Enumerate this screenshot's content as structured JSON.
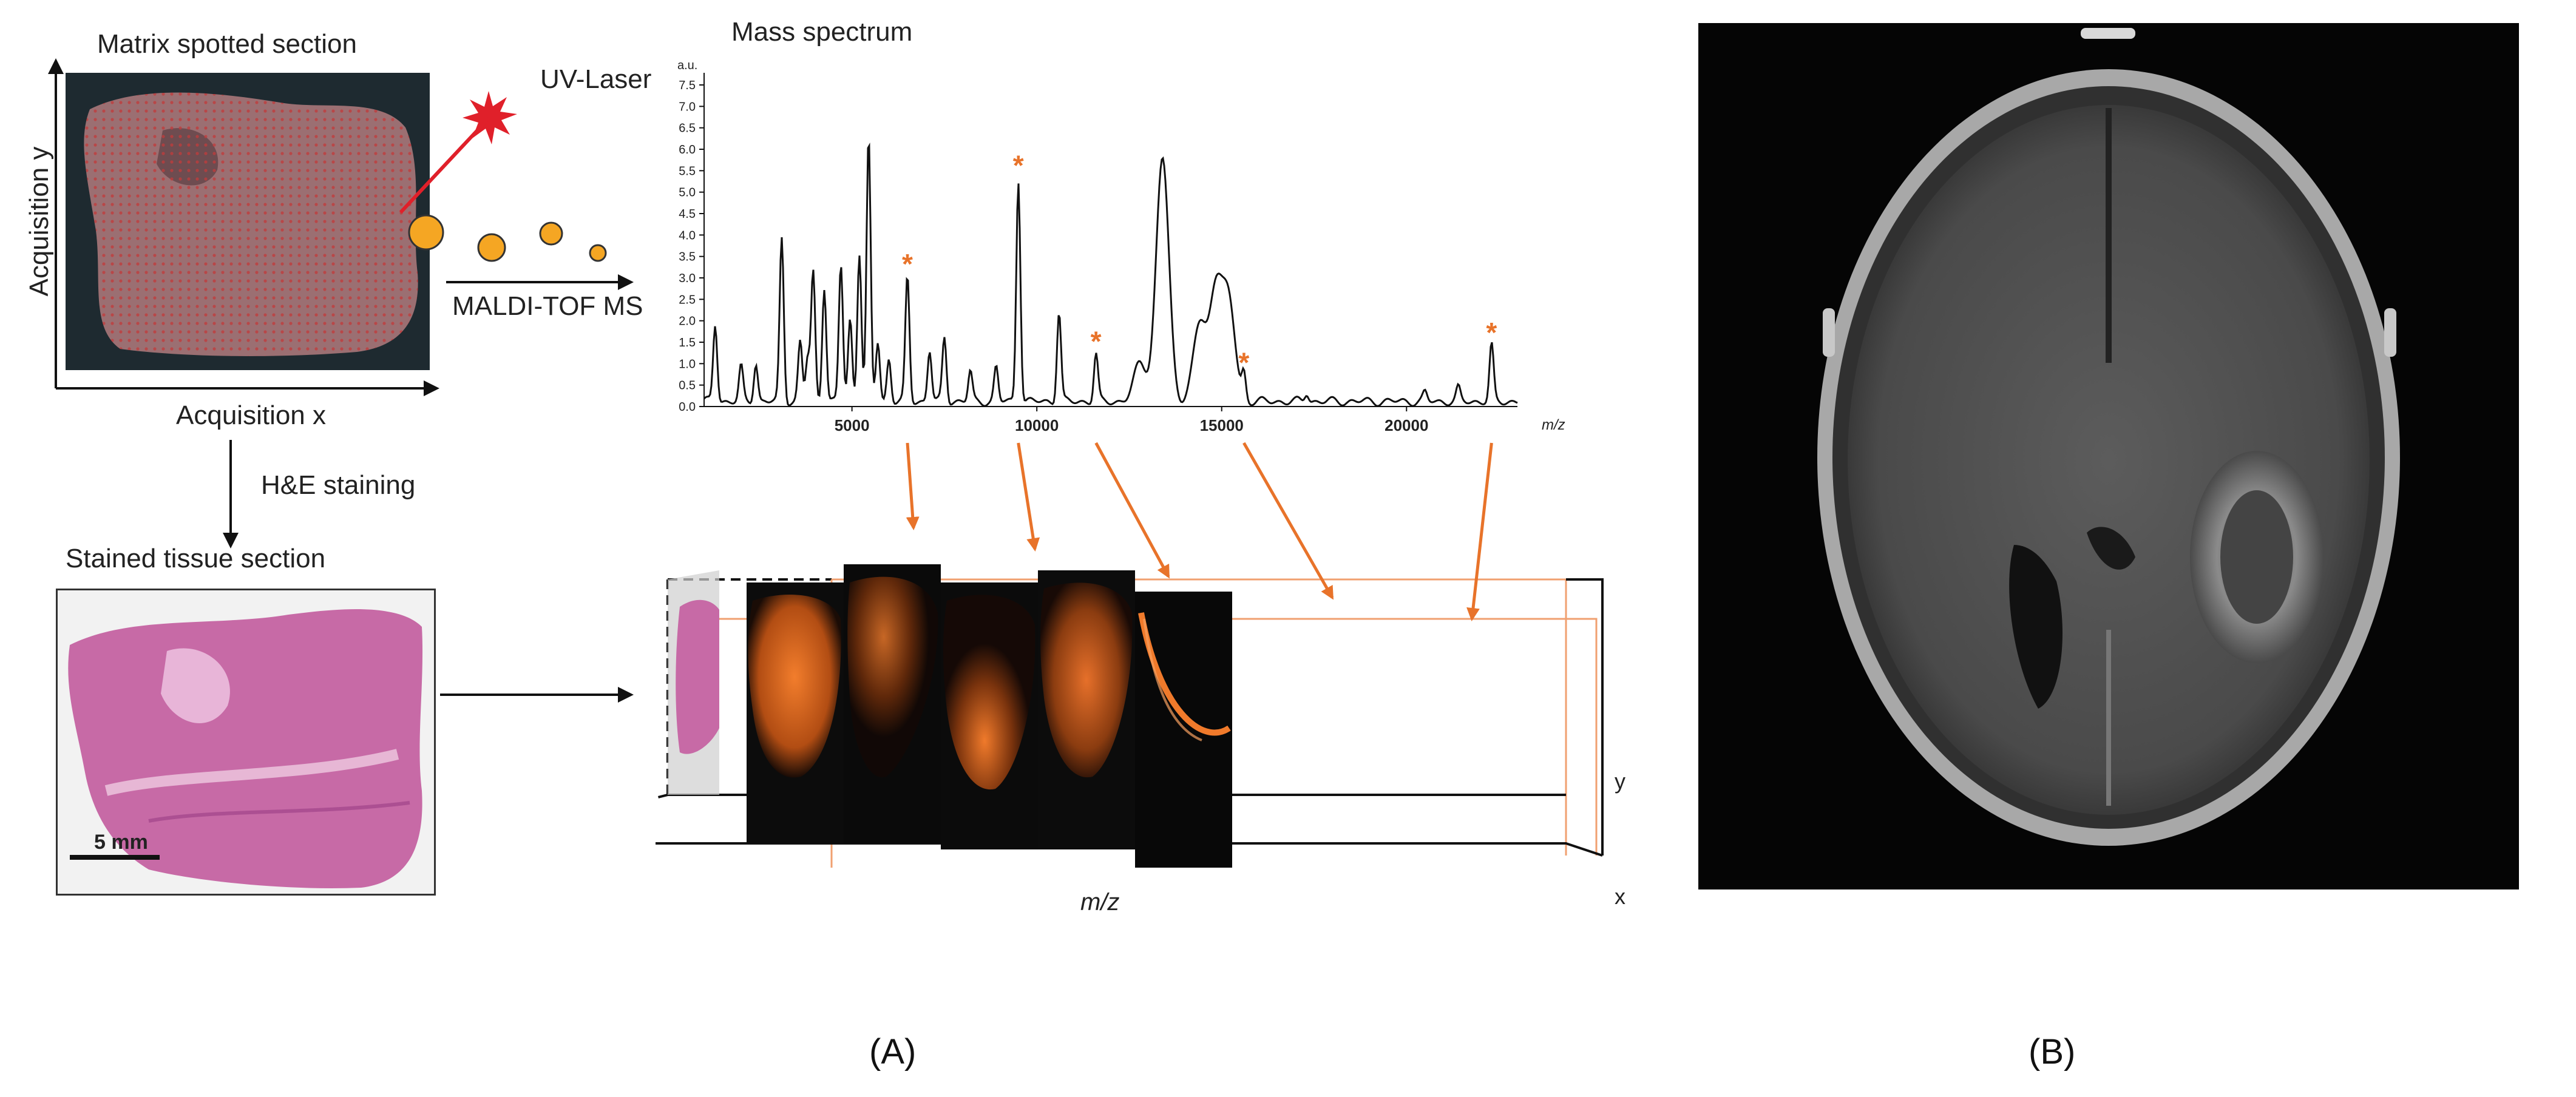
{
  "panel_a": {
    "label": "(A)",
    "matrix_title": "Matrix spotted section",
    "acq_y": "Acquisition y",
    "acq_x": "Acquisition x",
    "uv_laser": "UV-Laser",
    "maldi": "MALDI-TOF MS",
    "he_staining": "H&E staining",
    "stained_title": "Stained tissue section",
    "scale_bar": "5 mm",
    "spectrum_title": "Mass spectrum",
    "cube_axis_mz": "m/z",
    "cube_axis_x": "x",
    "cube_axis_y": "y",
    "star": "*"
  },
  "panel_b": {
    "label": "(B)"
  },
  "colors": {
    "orange": "#e8732a",
    "laser": "#e0202a",
    "ion": "#f5a623",
    "he_pink": "#c76aa6"
  },
  "chart_data": {
    "type": "line",
    "title": "Mass spectrum",
    "ylabel": "a.u.",
    "xlabel": "m/z",
    "ylim": [
      0,
      7.5
    ],
    "xlim": [
      1000,
      23000
    ],
    "y_ticks": [
      "0.0",
      "0.5",
      "1.0",
      "1.5",
      "2.0",
      "2.5",
      "3.0",
      "3.5",
      "4.0",
      "4.5",
      "5.0",
      "5.5",
      "6.0",
      "6.5",
      "7.0",
      "7.5"
    ],
    "x_ticks": [
      "5000",
      "10000",
      "15000",
      "20000"
    ],
    "peaks": [
      {
        "mz": 1300,
        "intensity": 1.8
      },
      {
        "mz": 2000,
        "intensity": 0.8
      },
      {
        "mz": 2400,
        "intensity": 0.9
      },
      {
        "mz": 3100,
        "intensity": 3.8
      },
      {
        "mz": 3600,
        "intensity": 1.4
      },
      {
        "mz": 3800,
        "intensity": 1.0
      },
      {
        "mz": 3950,
        "intensity": 3.0
      },
      {
        "mz": 4250,
        "intensity": 2.7
      },
      {
        "mz": 4700,
        "intensity": 3.2
      },
      {
        "mz": 4950,
        "intensity": 1.9
      },
      {
        "mz": 5200,
        "intensity": 3.5
      },
      {
        "mz": 5450,
        "intensity": 6.1
      },
      {
        "mz": 5700,
        "intensity": 1.4
      },
      {
        "mz": 6000,
        "intensity": 1.0
      },
      {
        "mz": 6500,
        "intensity": 2.9
      },
      {
        "mz": 7100,
        "intensity": 1.2
      },
      {
        "mz": 7500,
        "intensity": 1.5
      },
      {
        "mz": 8200,
        "intensity": 0.7
      },
      {
        "mz": 8900,
        "intensity": 0.8
      },
      {
        "mz": 9500,
        "intensity": 5.2
      },
      {
        "mz": 10600,
        "intensity": 2.1
      },
      {
        "mz": 11600,
        "intensity": 1.1
      },
      {
        "mz": 12800,
        "intensity": 0.9
      },
      {
        "mz": 13400,
        "intensity": 5.7
      },
      {
        "mz": 14400,
        "intensity": 1.8
      },
      {
        "mz": 14850,
        "intensity": 2.7
      },
      {
        "mz": 15200,
        "intensity": 2.2
      },
      {
        "mz": 15600,
        "intensity": 0.6
      },
      {
        "mz": 17300,
        "intensity": 0.2
      },
      {
        "mz": 20500,
        "intensity": 0.2
      },
      {
        "mz": 21400,
        "intensity": 0.3
      },
      {
        "mz": 22300,
        "intensity": 1.3
      }
    ],
    "starred_mz": [
      6500,
      9500,
      11600,
      15600,
      22300
    ]
  }
}
